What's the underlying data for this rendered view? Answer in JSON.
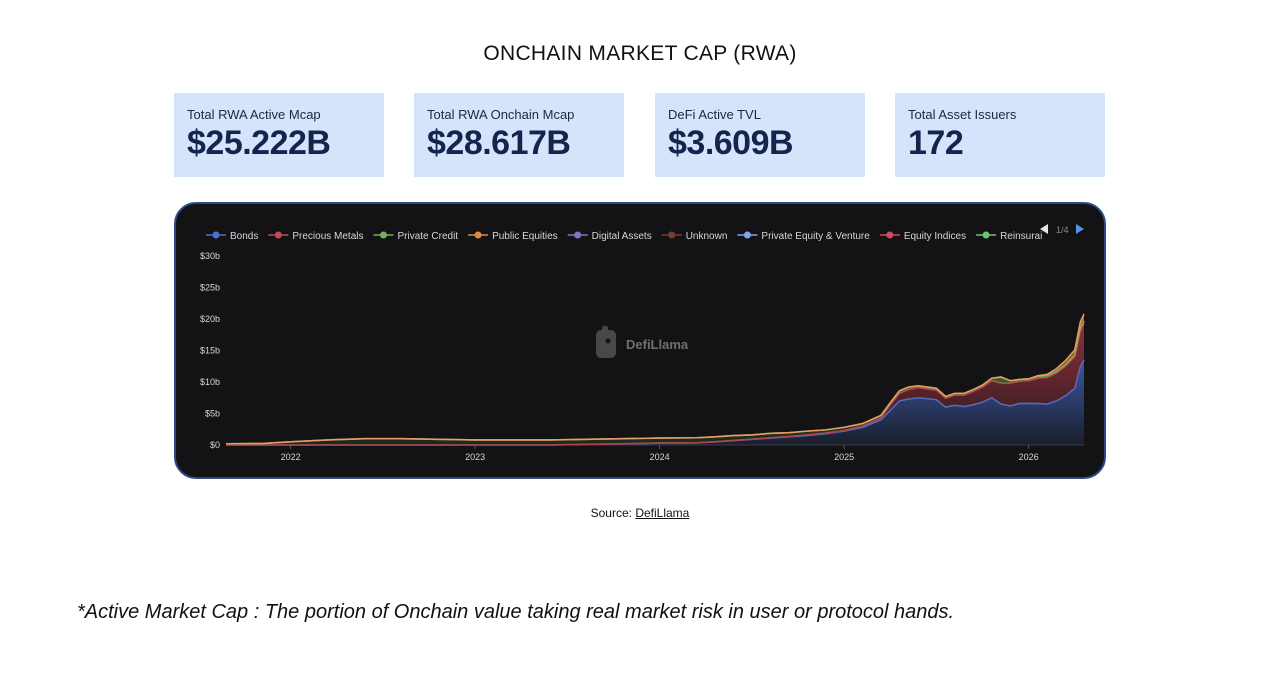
{
  "title": "ONCHAIN MARKET CAP (RWA)",
  "cards": [
    {
      "label": "Total RWA Active Mcap",
      "value": "$25.222B"
    },
    {
      "label": "Total RWA Onchain Mcap",
      "value": "$28.617B"
    },
    {
      "label": "DeFi Active TVL",
      "value": "$3.609B"
    },
    {
      "label": "Total Asset Issuers",
      "value": "172"
    }
  ],
  "colors": {
    "card_bg": "#d5e4fb",
    "card_value": "#14254d",
    "chart_bg": "#131316",
    "frame_border": "#2b4a86"
  },
  "chart_data": {
    "type": "area",
    "stacked": true,
    "watermark": "DefiLlama",
    "legend_page": "1/4",
    "legend_position": "top",
    "grid": false,
    "x_ticks": [
      "2022",
      "2023",
      "2024",
      "2025",
      "2026"
    ],
    "y_ticks": [
      "$0",
      "$5b",
      "$10b",
      "$15b",
      "$20b",
      "$25b",
      "$30b"
    ],
    "ylim": [
      0,
      30
    ],
    "x_range": [
      2021.65,
      2026.3
    ],
    "x": [
      2021.65,
      2021.85,
      2022.0,
      2022.2,
      2022.4,
      2022.6,
      2022.8,
      2023.0,
      2023.2,
      2023.4,
      2023.5,
      2023.6,
      2023.8,
      2024.0,
      2024.2,
      2024.3,
      2024.4,
      2024.5,
      2024.6,
      2024.7,
      2024.8,
      2024.9,
      2025.0,
      2025.1,
      2025.2,
      2025.25,
      2025.3,
      2025.35,
      2025.4,
      2025.5,
      2025.55,
      2025.6,
      2025.65,
      2025.7,
      2025.75,
      2025.8,
      2025.85,
      2025.9,
      2025.95,
      2026.0,
      2026.05,
      2026.1,
      2026.15,
      2026.2,
      2026.25,
      2026.28,
      2026.3
    ],
    "series": [
      {
        "name": "Bonds",
        "color": "#4a6fd0",
        "values": [
          0,
          0,
          0,
          0,
          0,
          0,
          0,
          0,
          0,
          0,
          0.05,
          0.1,
          0.2,
          0.3,
          0.35,
          0.5,
          0.7,
          0.9,
          1.1,
          1.3,
          1.5,
          1.8,
          2.2,
          2.8,
          4.0,
          5.5,
          7.0,
          7.3,
          7.5,
          7.2,
          6.0,
          6.3,
          6.1,
          6.4,
          6.8,
          7.5,
          6.5,
          6.2,
          6.6,
          6.6,
          6.6,
          6.5,
          7.0,
          7.8,
          9.0,
          12.5,
          13.5
        ]
      },
      {
        "name": "Precious Metals",
        "color": "#b83a48",
        "values": [
          0,
          0,
          0,
          0,
          0,
          0,
          0,
          0,
          0,
          0,
          0,
          0,
          0,
          0,
          0,
          0,
          0,
          0,
          0.05,
          0.05,
          0.1,
          0.1,
          0.1,
          0.2,
          0.3,
          0.8,
          1.2,
          1.5,
          1.6,
          1.5,
          1.4,
          1.6,
          1.8,
          2.1,
          2.4,
          2.7,
          3.3,
          3.6,
          3.5,
          3.6,
          4.0,
          4.2,
          4.4,
          4.7,
          5.0,
          5.6,
          5.8
        ]
      },
      {
        "name": "Private Credit",
        "color": "#6db35a",
        "values": [
          0.2,
          0.25,
          0.5,
          0.8,
          1.0,
          1.0,
          0.9,
          0.8,
          0.8,
          0.8,
          0.8,
          0.8,
          0.8,
          0.8,
          0.8,
          0.8,
          0.8,
          0.7,
          0.7,
          0.6,
          0.6,
          0.5,
          0.5,
          0.4,
          0.4,
          0.4,
          0.4,
          0.4,
          0.3,
          0.3,
          0.3,
          0.3,
          0.3,
          0.3,
          0.3,
          0.4,
          1.0,
          0.4,
          0.3,
          0.3,
          0.3,
          0.3,
          0.3,
          0.3,
          0.3,
          0.4,
          0.4
        ]
      },
      {
        "name": "Public Equities",
        "color": "#e08a45",
        "values": [
          0,
          0,
          0,
          0,
          0,
          0,
          0,
          0,
          0,
          0,
          0,
          0,
          0,
          0,
          0,
          0,
          0,
          0,
          0,
          0,
          0,
          0,
          0,
          0,
          0,
          0,
          0,
          0,
          0,
          0,
          0,
          0,
          0,
          0,
          0,
          0,
          0,
          0,
          0,
          0,
          0.1,
          0.2,
          0.4,
          0.6,
          0.8,
          1.0,
          1.1
        ]
      }
    ],
    "legend": [
      {
        "name": "Bonds",
        "color": "#4a6fd0"
      },
      {
        "name": "Precious Metals",
        "color": "#c24a56"
      },
      {
        "name": "Private Credit",
        "color": "#6db35a"
      },
      {
        "name": "Public Equities",
        "color": "#e08a45"
      },
      {
        "name": "Digital Assets",
        "color": "#8a6fc9"
      },
      {
        "name": "Unknown",
        "color": "#7a3d36"
      },
      {
        "name": "Private Equity & Venture",
        "color": "#7fa8e8"
      },
      {
        "name": "Equity Indices",
        "color": "#d24a62"
      },
      {
        "name": "Reinsurai",
        "color": "#6ec76a"
      }
    ]
  },
  "source": {
    "prefix": "Source:",
    "link": "DefiLlama"
  },
  "footnote": "*Active Market Cap : The portion of Onchain value taking real market risk in user or protocol hands."
}
